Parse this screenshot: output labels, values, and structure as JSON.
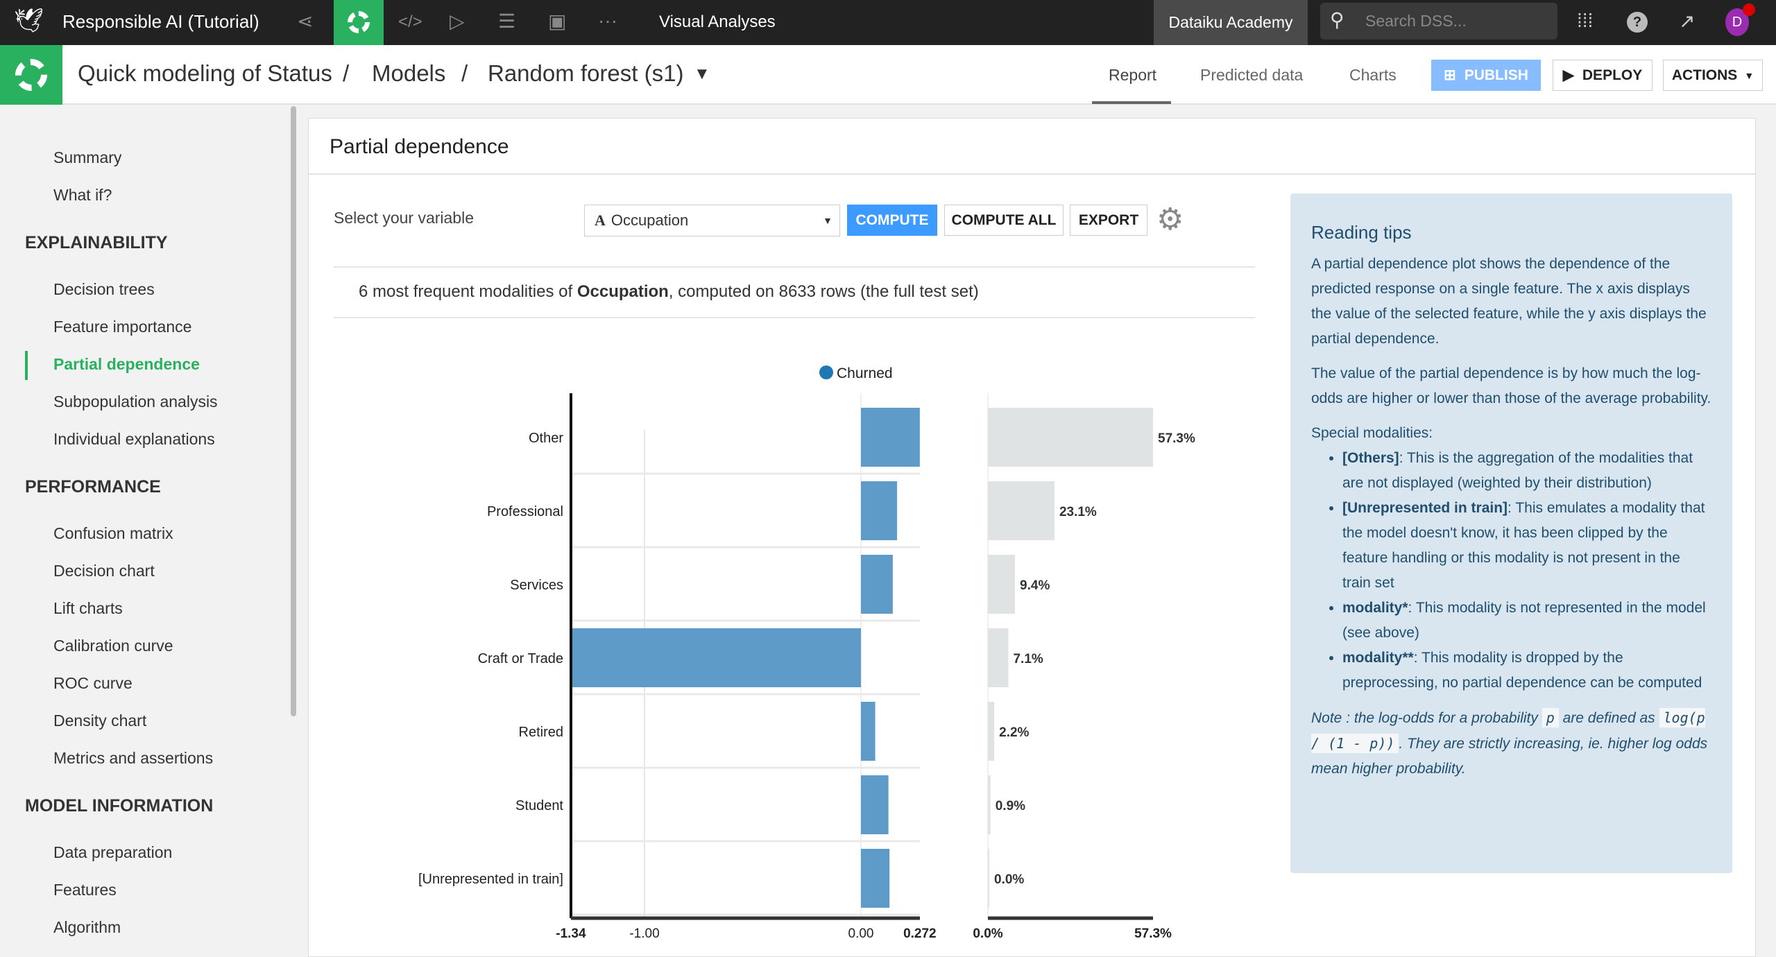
{
  "topbar": {
    "project": "Responsible AI (Tutorial)",
    "section": "Visual Analyses",
    "academy": "Dataiku Academy",
    "search_placeholder": "Search DSS...",
    "avatar": "D",
    "icons": [
      "bird-logo-icon",
      "flow-icon",
      "ml-icon",
      "code-icon",
      "run-icon",
      "datasets-icon",
      "dashboard-icon",
      "more-icon",
      "apps-grid-icon",
      "help-icon",
      "activity-icon"
    ]
  },
  "breadcrumb": {
    "items": [
      "Quick modeling of Status",
      "Models",
      "Random forest (s1)"
    ],
    "sep": "/"
  },
  "tabs": [
    {
      "label": "Report",
      "active": true
    },
    {
      "label": "Predicted data"
    },
    {
      "label": "Charts"
    }
  ],
  "actions": {
    "publish": "PUBLISH",
    "deploy": "DEPLOY",
    "actions": "ACTIONS"
  },
  "sidebar": {
    "top": [
      "Summary",
      "What if?"
    ],
    "sections": [
      {
        "title": "EXPLAINABILITY",
        "items": [
          "Decision trees",
          "Feature importance",
          "Partial dependence",
          "Subpopulation analysis",
          "Individual explanations"
        ]
      },
      {
        "title": "PERFORMANCE",
        "items": [
          "Confusion matrix",
          "Decision chart",
          "Lift charts",
          "Calibration curve",
          "ROC curve",
          "Density chart",
          "Metrics and assertions"
        ]
      },
      {
        "title": "MODEL INFORMATION",
        "items": [
          "Data preparation",
          "Features",
          "Algorithm"
        ]
      }
    ],
    "active": "Partial dependence"
  },
  "panel": {
    "title": "Partial dependence",
    "select_label": "Select your variable",
    "variable": "Occupation",
    "variable_type_icon": "A",
    "compute": "COMPUTE",
    "compute_all": "COMPUTE ALL",
    "export": "EXPORT",
    "summary_pre": "6 most frequent modalities of ",
    "summary_bold": "Occupation",
    "summary_post": ", computed on 8633 rows (the full test set)"
  },
  "colors": {
    "accent": "#2ab15f",
    "bar": "#5f9bc8",
    "dist": "#dfe3e4",
    "compute": "#3d9bff",
    "publish": "#87bdff",
    "tips_bg": "#d9e6ef"
  },
  "chart_data": {
    "type": "bar",
    "orientation": "horizontal",
    "legend": "Churned",
    "legend_placement": "top",
    "categories": [
      "Other",
      "Professional",
      "Services",
      "Craft or Trade",
      "Retired",
      "Student",
      "[Unrepresented in train]"
    ],
    "values": [
      0.272,
      0.167,
      0.147,
      -1.34,
      0.066,
      0.127,
      0.132
    ],
    "xlim": [
      -1.34,
      0.272
    ],
    "xticks": [
      "-1.34",
      "-1.00",
      "0.00",
      "0.272"
    ],
    "distribution": {
      "values": [
        57.3,
        23.1,
        9.4,
        7.1,
        2.2,
        0.9,
        0.0
      ],
      "labels": [
        "57.3%",
        "23.1%",
        "9.4%",
        "7.1%",
        "2.2%",
        "0.9%",
        "0.0%"
      ],
      "xlim": [
        0,
        57.3
      ],
      "xticks": [
        "0.0%",
        "57.3%"
      ]
    }
  },
  "tips": {
    "title": "Reading tips",
    "p1": "A partial dependence plot shows the dependence of the predicted response on a single feature. The x axis displays the value of the selected feature, while the y axis displays the partial dependence.",
    "p2": "The value of the partial dependence is by how much the log-odds are higher or lower than those of the average probability.",
    "special": "Special modalities:",
    "items": [
      {
        "b": "[Others]",
        "t": ": This is the aggregation of the modalities that are not displayed (weighted by their distribution)"
      },
      {
        "b": "[Unrepresented in train]",
        "t": ": This emulates a modality that the model doesn't know, it has been clipped by the feature handling or this modality is not present in the train set"
      },
      {
        "b": "modality*",
        "t": ": This modality is not represented in the model (see above)"
      },
      {
        "b": "modality**",
        "t": ": This modality is dropped by the preprocessing, no partial dependence can be computed"
      }
    ],
    "note1": "Note : the log-odds for a probability ",
    "code1": "p",
    "note2": " are defined as ",
    "code2": "log(p / (1 - p))",
    "note3": ". They are strictly increasing, ie. higher log odds mean higher probability."
  }
}
